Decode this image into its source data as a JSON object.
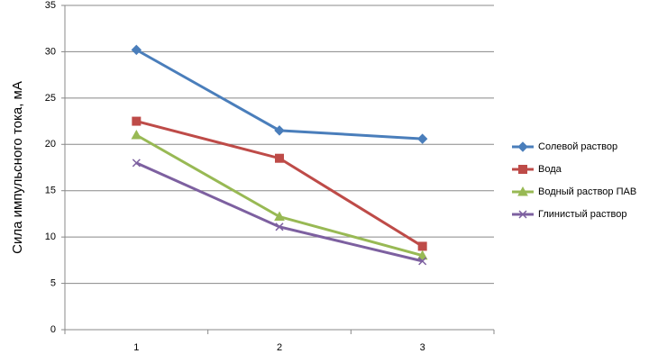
{
  "chart_data": {
    "type": "line",
    "y_label": "Сила импульсного тока, мА",
    "categories": [
      "1",
      "2",
      "3"
    ],
    "series": [
      {
        "name": "Солевой раствор",
        "color": "#4a7ebb",
        "marker": "diamond",
        "values": [
          30.2,
          21.5,
          20.6
        ]
      },
      {
        "name": "Вода",
        "color": "#be4b48",
        "marker": "square",
        "values": [
          22.5,
          18.5,
          9.0
        ]
      },
      {
        "name": "Водный раствор ПАВ",
        "color": "#98b954",
        "marker": "triangle",
        "values": [
          21.0,
          12.2,
          8.0
        ]
      },
      {
        "name": "Глинистый раствор",
        "color": "#7d60a0",
        "marker": "x",
        "values": [
          18.0,
          11.1,
          7.4
        ]
      }
    ],
    "ylim": [
      0,
      35
    ],
    "yticks": [
      0,
      5,
      10,
      15,
      20,
      25,
      30,
      35
    ],
    "grid": true,
    "legend": "right"
  }
}
